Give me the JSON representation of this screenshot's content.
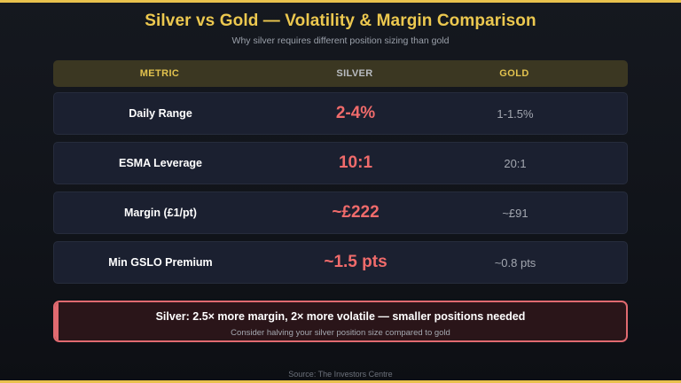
{
  "header": {
    "title": "Silver vs Gold — Volatility & Margin Comparison",
    "subtitle": "Why silver requires different position sizing than gold"
  },
  "table": {
    "columns": [
      "METRIC",
      "SILVER",
      "GOLD"
    ],
    "rows": [
      {
        "metric": "Daily Range",
        "silver": "2-4%",
        "gold": "1-1.5%"
      },
      {
        "metric": "ESMA Leverage",
        "silver": "10:1",
        "gold": "20:1"
      },
      {
        "metric": "Margin (£1/pt)",
        "silver": "~£222",
        "gold": "~£91"
      },
      {
        "metric": "Min GSLO Premium",
        "silver": "~1.5 pts",
        "gold": "~0.8 pts"
      }
    ]
  },
  "callout": {
    "title": "Silver: 2.5× more margin, 2× more volatile — smaller positions needed",
    "subtitle": "Consider halving your silver position size compared to gold"
  },
  "footer": {
    "source": "Source: The Investors Centre"
  },
  "colors": {
    "accent_gold": "#ecc84f",
    "silver_value": "#f06b6b",
    "callout_border": "#e06a70",
    "background": "#11141a"
  }
}
